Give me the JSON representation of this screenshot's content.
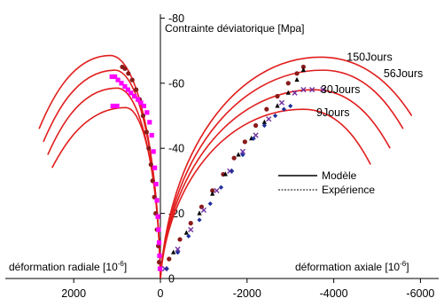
{
  "chart_data": {
    "type": "scatter",
    "ylabel": "Contrainte déviatorique [Mpa]",
    "xlabel_right": "déformation axiale [10",
    "xlabel_left": "déformation radiale [10",
    "xlabel_exponent": "-6",
    "xlabel_suffix": "]",
    "x_ticks": [
      {
        "value": 2000,
        "label": "2000"
      },
      {
        "value": 0,
        "label": "0"
      },
      {
        "value": -2000,
        "label": "-2000"
      },
      {
        "value": -4000,
        "label": "-4000"
      },
      {
        "value": -6000,
        "label": "-6000"
      }
    ],
    "y_ticks": [
      {
        "value": 0,
        "label": "0"
      },
      {
        "value": -20,
        "label": "-20"
      },
      {
        "value": -40,
        "label": "-40"
      },
      {
        "value": -60,
        "label": "-60"
      },
      {
        "value": -80,
        "label": "-80"
      }
    ],
    "xlim": [
      3000,
      -6000
    ],
    "ylim": [
      0,
      -80
    ],
    "legend": {
      "placement": "right",
      "entries": [
        {
          "label": "Modèle",
          "style": "solid"
        },
        {
          "label": "Expérience",
          "style": "dashed"
        }
      ]
    },
    "model_curves": [
      {
        "name": "150Jours",
        "label_at": [
          -4300,
          -68
        ],
        "axial_peak": [
          -3700,
          -68
        ],
        "axial_end": [
          -5800,
          -50
        ],
        "radial_peak": [
          1150,
          -68.5
        ],
        "radial_end": [
          2800,
          -46
        ]
      },
      {
        "name": "56Jours",
        "label_at": [
          -5150,
          -63
        ],
        "axial_peak": [
          -3750,
          -64
        ],
        "axial_end": [
          -5600,
          -46
        ],
        "radial_peak": [
          1050,
          -64
        ],
        "radial_end": [
          2700,
          -42
        ]
      },
      {
        "name": "30Jours",
        "label_at": [
          -3700,
          -58
        ],
        "axial_peak": [
          -3550,
          -58
        ],
        "axial_end": [
          -5300,
          -40
        ],
        "radial_peak": [
          1000,
          -58.5
        ],
        "radial_end": [
          2600,
          -38
        ]
      },
      {
        "name": "9Jours",
        "label_at": [
          -3600,
          -51
        ],
        "axial_peak": [
          -3300,
          -52
        ],
        "axial_end": [
          -4850,
          -35
        ],
        "radial_peak": [
          800,
          -52.5
        ],
        "radial_end": [
          2500,
          -34
        ]
      }
    ],
    "experiment_series": [
      {
        "color": "#8b1a1a",
        "marker": "circle",
        "axial": [
          [
            -200,
            -6
          ],
          [
            -450,
            -12
          ],
          [
            -700,
            -17
          ],
          [
            -950,
            -22
          ],
          [
            -1200,
            -27
          ],
          [
            -1450,
            -32
          ],
          [
            -1700,
            -37
          ],
          [
            -1950,
            -42
          ],
          [
            -2200,
            -47
          ],
          [
            -2450,
            -52
          ],
          [
            -2700,
            -56
          ],
          [
            -2950,
            -60
          ],
          [
            -3150,
            -63
          ],
          [
            -3300,
            -65
          ]
        ],
        "radial": [
          [
            30,
            -5
          ],
          [
            50,
            -10
          ],
          [
            80,
            -15
          ],
          [
            110,
            -20
          ],
          [
            140,
            -25
          ],
          [
            180,
            -30
          ],
          [
            220,
            -35
          ],
          [
            270,
            -40
          ],
          [
            320,
            -45
          ],
          [
            400,
            -50
          ],
          [
            480,
            -55
          ],
          [
            560,
            -58
          ],
          [
            650,
            -61
          ],
          [
            740,
            -63
          ],
          [
            820,
            -64.5
          ],
          [
            880,
            -65
          ]
        ]
      },
      {
        "color": "#000000",
        "marker": "triangle",
        "axial": [
          [
            -300,
            -8
          ],
          [
            -600,
            -14
          ],
          [
            -900,
            -20
          ],
          [
            -1200,
            -26
          ],
          [
            -1500,
            -32
          ],
          [
            -1800,
            -38
          ],
          [
            -2100,
            -43
          ],
          [
            -2400,
            -48
          ],
          [
            -2700,
            -53
          ],
          [
            -2950,
            -57
          ],
          [
            -3150,
            -61
          ],
          [
            -3300,
            -64
          ]
        ],
        "radial": []
      },
      {
        "color": "#7030a0",
        "marker": "cross",
        "axial": [
          [
            -100,
            -3
          ],
          [
            -400,
            -9
          ],
          [
            -700,
            -15
          ],
          [
            -1000,
            -21
          ],
          [
            -1300,
            -27
          ],
          [
            -1600,
            -33
          ],
          [
            -1900,
            -39
          ],
          [
            -2200,
            -44
          ],
          [
            -2500,
            -49
          ],
          [
            -2800,
            -54
          ],
          [
            -3100,
            -57
          ],
          [
            -3300,
            -58
          ],
          [
            -3500,
            -58
          ],
          [
            -3750,
            -58
          ]
        ],
        "radial": []
      },
      {
        "color": "#1f2f9a",
        "marker": "diamond",
        "axial": [
          [
            -150,
            -3
          ],
          [
            -400,
            -8
          ],
          [
            -650,
            -13
          ],
          [
            -900,
            -18
          ],
          [
            -1150,
            -23
          ],
          [
            -1400,
            -28
          ],
          [
            -1650,
            -33
          ],
          [
            -1900,
            -38
          ],
          [
            -2150,
            -43
          ],
          [
            -2400,
            -47
          ],
          [
            -2650,
            -50
          ],
          [
            -2850,
            -52
          ],
          [
            -3000,
            -53
          ]
        ],
        "radial": []
      },
      {
        "color": "#ff00ff",
        "marker": "square",
        "axial": [],
        "radial": [
          [
            10,
            -3
          ],
          [
            20,
            -7
          ],
          [
            30,
            -11
          ],
          [
            45,
            -15
          ],
          [
            60,
            -19
          ],
          [
            80,
            -24
          ],
          [
            100,
            -29
          ],
          [
            130,
            -34
          ],
          [
            160,
            -39
          ],
          [
            200,
            -44
          ],
          [
            250,
            -48
          ],
          [
            310,
            -51
          ],
          [
            380,
            -53
          ],
          [
            450,
            -54
          ],
          [
            520,
            -55
          ],
          [
            600,
            -56
          ],
          [
            680,
            -57
          ],
          [
            750,
            -58
          ],
          [
            820,
            -59
          ],
          [
            900,
            -60
          ],
          [
            980,
            -61
          ],
          [
            1050,
            -62
          ],
          [
            1120,
            -62
          ],
          [
            1000,
            -53
          ],
          [
            1100,
            -53
          ]
        ]
      }
    ]
  }
}
